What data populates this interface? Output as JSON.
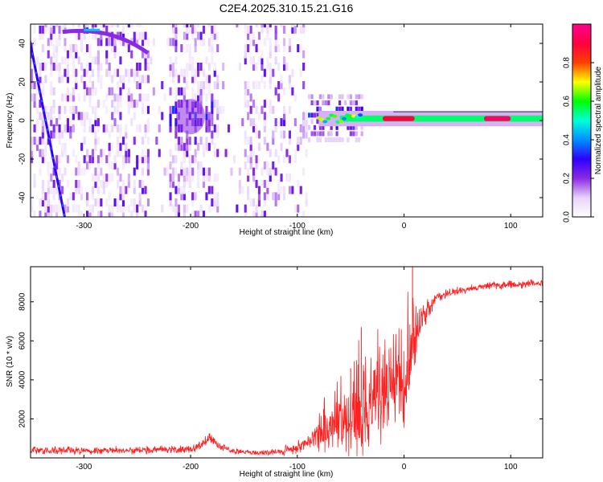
{
  "figure_title": "C2E4.2025.310.15.21.G16",
  "chart_data": [
    {
      "type": "heatmap",
      "name": "spectrogram",
      "title": "C2E4.2025.310.15.21.G16",
      "xlabel": "Height of straight line (km)",
      "ylabel": "Frequency (Hz)",
      "xlim": [
        -350,
        130
      ],
      "ylim": [
        -50,
        50
      ],
      "xticks": [
        -300,
        -200,
        -100,
        0,
        100
      ],
      "yticks": [
        -40,
        -20,
        0,
        20,
        40
      ],
      "colorbar": {
        "label": "Normalized spectral amplitude",
        "range": [
          0.0,
          1.0
        ],
        "ticks": [
          0.0,
          0.2,
          0.4,
          0.6,
          0.8
        ],
        "colors": [
          "#ffffff",
          "#e8d2fb",
          "#8a2be2",
          "#2d00ff",
          "#0090ff",
          "#00ffd9",
          "#00ff00",
          "#ffff00",
          "#ff4000",
          "#ff0040",
          "#ff0090"
        ]
      },
      "features": [
        {
          "name": "narrow carrier line",
          "x_range": [
            -80,
            130
          ],
          "y": 1,
          "amplitude": 0.55
        },
        {
          "name": "scintillation spread",
          "x_range": [
            -350,
            -90
          ],
          "y_range": [
            -50,
            50
          ],
          "amplitude": 0.15
        },
        {
          "name": "descending streak",
          "x_from": -352,
          "y_from": 45,
          "x_to": -318,
          "y_to": -50,
          "amplitude": 0.3
        },
        {
          "name": "upper arc",
          "x_from": -320,
          "y_from": 46,
          "x_to": -240,
          "y_to": 35,
          "amplitude": 0.2
        },
        {
          "name": "central blob",
          "x": -200,
          "y": 2,
          "amplitude": 0.2
        },
        {
          "name": "bright segments",
          "x_range": [
            -20,
            10
          ],
          "y": 1,
          "amplitude": 0.9
        },
        {
          "name": "bright segment",
          "x_range": [
            75,
            100
          ],
          "y": 1,
          "amplitude": 0.95
        }
      ]
    },
    {
      "type": "line",
      "name": "snr",
      "xlabel": "Height of straight line (km)",
      "ylabel": "SNR (10 * v/v)",
      "xlim": [
        -350,
        130
      ],
      "ylim": [
        0,
        9800
      ],
      "xticks": [
        -300,
        -200,
        -100,
        0,
        100
      ],
      "yticks": [
        2000,
        4000,
        6000,
        8000
      ],
      "color": "#ff2020",
      "series": [
        {
          "name": "SNR",
          "x": [
            -350,
            -300,
            -250,
            -200,
            -190,
            -182,
            -175,
            -160,
            -140,
            -120,
            -100,
            -90,
            -80,
            -70,
            -60,
            -50,
            -40,
            -30,
            -20,
            -10,
            -5,
            0,
            5,
            10,
            15,
            20,
            25,
            30,
            40,
            50,
            60,
            70,
            80,
            90,
            100,
            110,
            120,
            130
          ],
          "y": [
            350,
            380,
            400,
            450,
            650,
            1100,
            650,
            350,
            250,
            300,
            500,
            800,
            1100,
            1400,
            1700,
            2100,
            2600,
            3100,
            3500,
            3800,
            4200,
            2700,
            5200,
            6300,
            6800,
            7300,
            7800,
            8200,
            8450,
            8550,
            8650,
            8750,
            8850,
            8850,
            8900,
            8850,
            8950,
            8900
          ],
          "noise_amplitude": [
            250,
            250,
            250,
            250,
            250,
            350,
            250,
            200,
            150,
            200,
            400,
            600,
            900,
            1200,
            1600,
            2400,
            3200,
            3500,
            3000,
            2500,
            2500,
            2000,
            2500,
            1800,
            1200,
            800,
            500,
            350,
            300,
            250,
            250,
            250,
            250,
            250,
            250,
            250,
            250,
            250
          ],
          "peaks": [
            {
              "x": 8,
              "y": 9800
            },
            {
              "x": -40,
              "y": 6700
            },
            {
              "x": -18,
              "y": 5500
            },
            {
              "x": -50,
              "y": 4600
            }
          ]
        }
      ]
    }
  ]
}
